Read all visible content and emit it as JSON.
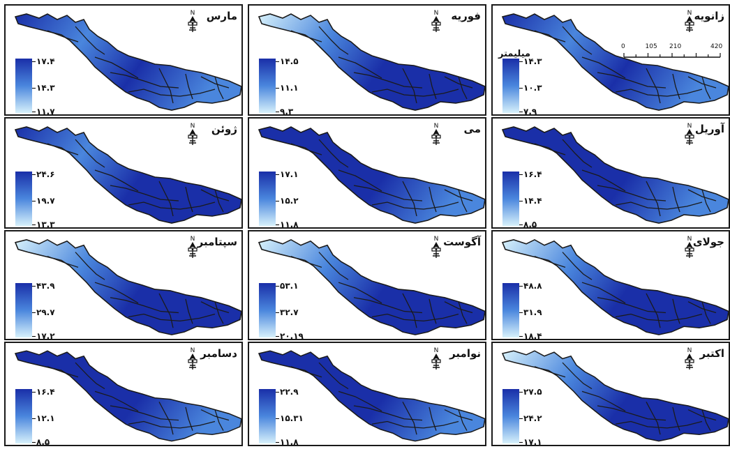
{
  "colors": {
    "low": "#d7f1fb",
    "mid": "#4a86dd",
    "high": "#1a2fa8",
    "border": "#1a1a1a",
    "frame": "#1a1a1a"
  },
  "icons": {
    "north_arrow": "north-arrow-icon"
  },
  "panels": [
    {
      "month": "زانویه",
      "values": {
        "high": "۱۴.۳",
        "mid": "۱۰.۳",
        "low": "۷.۹"
      },
      "intensity": 0.55
    },
    {
      "month": "فوریه",
      "values": {
        "high": "۱۴.۵",
        "mid": "۱۱.۱",
        "low": "۹.۳"
      },
      "intensity": 0.45
    },
    {
      "month": "مارس",
      "values": {
        "high": "۱۷.۴",
        "mid": "۱۴.۳",
        "low": "۱۱.۷"
      },
      "intensity": 0.6
    },
    {
      "month": "آوریل",
      "values": {
        "high": "۱۶.۴",
        "mid": "۱۴.۴",
        "low": "۸.۵"
      },
      "intensity": 0.75
    },
    {
      "month": "می",
      "values": {
        "high": "۱۷.۱",
        "mid": "۱۵.۲",
        "low": "۱۱.۸"
      },
      "intensity": 0.7
    },
    {
      "month": "ژوئن",
      "values": {
        "high": "۲۴.۶",
        "mid": "۱۹.۷",
        "low": "۱۳.۳"
      },
      "intensity": 0.5
    },
    {
      "month": "جولای",
      "values": {
        "high": "۴۸.۸",
        "mid": "۳۱.۹",
        "low": "۱۸.۴"
      },
      "intensity": 0.35
    },
    {
      "month": "آگوست",
      "values": {
        "high": "۵۳.۱",
        "mid": "۳۲.۷",
        "low": "۲۰.۱۹"
      },
      "intensity": 0.35
    },
    {
      "month": "سپتامبر",
      "values": {
        "high": "۴۳.۹",
        "mid": "۲۹.۷",
        "low": "۱۷.۲"
      },
      "intensity": 0.4
    },
    {
      "month": "اکتبر",
      "values": {
        "high": "۲۷.۵",
        "mid": "۲۴.۲",
        "low": "۱۷.۱"
      },
      "intensity": 0.35
    },
    {
      "month": "نوامبر",
      "values": {
        "high": "۲۲.۹",
        "mid": "۱۵.۳۱",
        "low": "۱۱.۸"
      },
      "intensity": 0.65
    },
    {
      "month": "دسامبر",
      "values": {
        "high": "۱۶.۴",
        "mid": "۱۲.۱",
        "low": "۸.۵"
      },
      "intensity": 0.7
    }
  ],
  "units_label": "میلیمتر",
  "scale_bar": {
    "ticks": [
      "0",
      "105",
      "210",
      "420"
    ],
    "unit": ""
  }
}
